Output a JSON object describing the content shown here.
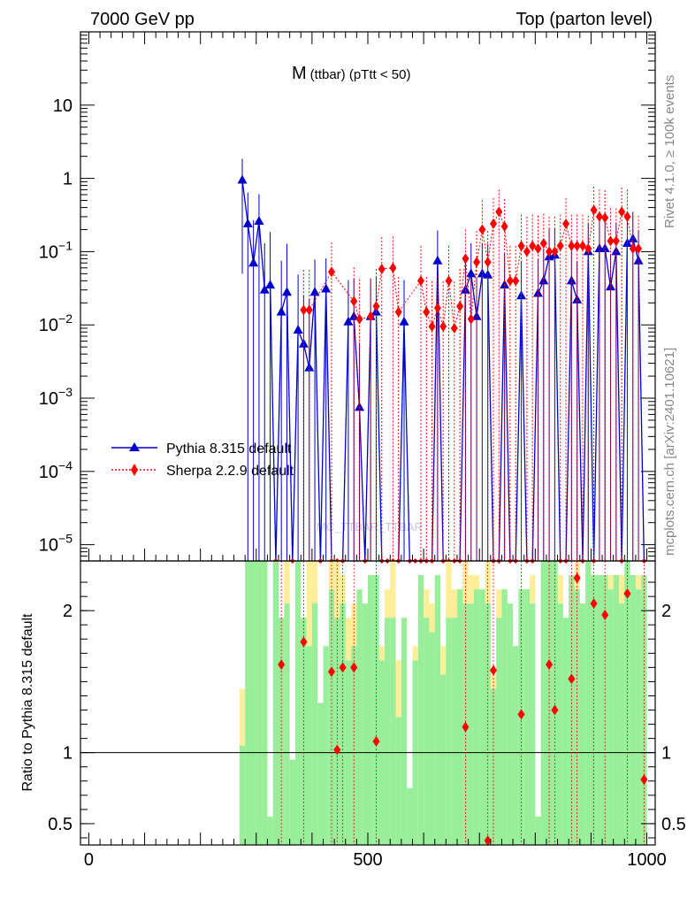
{
  "header": {
    "left": "7000 GeV pp",
    "right": "Top (parton level)"
  },
  "side_labels": {
    "rivet": "Rivet 4.1.0, ≥ 100k events",
    "mcplots": "mcplots.cern.ch [arXiv:2401.10621]"
  },
  "watermark": "MC_TTBAR_TTBAR",
  "colors": {
    "pythia": "#0000cc",
    "sherpa": "#ff0000",
    "band_green": "#99ee99",
    "band_yellow": "#ffee99"
  },
  "chart_data": [
    {
      "type": "line",
      "title": "M (ttbar) (pTtt < 50)",
      "title_main": "M",
      "title_sub": "(ttbar) (pTtt < 50)",
      "xlabel": "",
      "ylabel": "",
      "yscale": "log",
      "xlim": [
        -15,
        1015
      ],
      "ylim": [
        6e-06,
        100
      ],
      "x_ticks": [
        0,
        500,
        1000
      ],
      "y_ticks": [
        {
          "v": 10,
          "base": "10",
          "exp": ""
        },
        {
          "v": 1,
          "base": "1",
          "exp": ""
        },
        {
          "v": 0.1,
          "base": "10",
          "exp": "−1"
        },
        {
          "v": 0.01,
          "base": "10",
          "exp": "−2"
        },
        {
          "v": 0.001,
          "base": "10",
          "exp": "−3"
        },
        {
          "v": 0.0001,
          "base": "10",
          "exp": "−4"
        },
        {
          "v": 1e-05,
          "base": "10",
          "exp": "−5"
        }
      ],
      "legend": [
        "Pythia 8.315 default",
        "Sherpa 2.2.9 default"
      ],
      "legend_position": "center-left",
      "series": [
        {
          "name": "Pythia 8.315 default",
          "style": "solid-triangle",
          "x": [
            275,
            285,
            295,
            305,
            315,
            325,
            335,
            345,
            355,
            365,
            375,
            385,
            395,
            405,
            415,
            425,
            435,
            445,
            455,
            465,
            475,
            485,
            495,
            505,
            515,
            525,
            535,
            545,
            555,
            565,
            575,
            585,
            595,
            605,
            615,
            625,
            635,
            645,
            655,
            665,
            675,
            685,
            695,
            705,
            715,
            725,
            735,
            745,
            755,
            765,
            775,
            785,
            795,
            805,
            815,
            825,
            835,
            845,
            855,
            865,
            875,
            885,
            895,
            905,
            915,
            925,
            935,
            945,
            955,
            965,
            975,
            985,
            995
          ],
          "y": [
            0.95,
            0.24,
            0.07,
            0.26,
            0.03,
            0.035,
            0,
            0.015,
            0.028,
            0,
            0.0085,
            0.0055,
            0.0026,
            0.028,
            0,
            0.031,
            0,
            0,
            0,
            0.011,
            0.013,
            0.00075,
            0,
            0.013,
            0.015,
            0,
            0,
            0,
            0,
            0.011,
            0,
            0,
            0,
            0,
            0,
            0.075,
            0,
            0,
            0,
            0,
            0.03,
            0.05,
            0.013,
            0.05,
            0.048,
            0,
            0,
            0.035,
            0,
            0,
            0.025,
            0,
            0,
            0.027,
            0.04,
            0.085,
            0.09,
            0,
            0,
            0.04,
            0.022,
            0,
            0.1,
            0,
            0.11,
            0.11,
            0.033,
            0.1,
            0,
            0.13,
            0.15,
            0.075,
            0
          ],
          "yerr": [
            0.9,
            0.4,
            0.2,
            0.35,
            0.1,
            0.15,
            0,
            0.06,
            0.1,
            0,
            0.04,
            0.02,
            0.02,
            0.05,
            0,
            0.05,
            0,
            0,
            0,
            0.03,
            0.03,
            0.005,
            0,
            0.03,
            0.03,
            0,
            0,
            0,
            0,
            0.03,
            0,
            0,
            0,
            0,
            0,
            0.12,
            0,
            0,
            0,
            0,
            0.05,
            0.08,
            0.03,
            0.08,
            0.08,
            0,
            0,
            0.06,
            0,
            0,
            0.05,
            0,
            0,
            0.05,
            0.07,
            0.12,
            0.12,
            0,
            0,
            0.06,
            0.05,
            0,
            0.15,
            0,
            0.15,
            0.15,
            0.06,
            0.15,
            0,
            0.2,
            0.2,
            0.12,
            0
          ]
        },
        {
          "name": "Sherpa 2.2.9 default",
          "style": "dotted-diamond",
          "x": [
            385,
            395,
            435,
            475,
            485,
            505,
            515,
            525,
            545,
            555,
            595,
            605,
            615,
            625,
            635,
            645,
            655,
            665,
            675,
            685,
            695,
            705,
            715,
            725,
            735,
            745,
            755,
            765,
            775,
            785,
            795,
            805,
            815,
            825,
            835,
            845,
            855,
            865,
            875,
            885,
            895,
            905,
            915,
            925,
            935,
            945,
            955,
            965,
            975,
            985
          ],
          "y": [
            0.016,
            0.016,
            0.053,
            0.021,
            0.012,
            0.013,
            0.018,
            0.058,
            0.06,
            0.015,
            0.04,
            0.015,
            0.0095,
            0.017,
            0.0095,
            0.04,
            0.009,
            0.018,
            0.08,
            0.012,
            0.072,
            0.2,
            0.072,
            0.24,
            0.35,
            0.22,
            0.04,
            0.04,
            0.12,
            0.1,
            0.12,
            0.11,
            0.13,
            0.1,
            0.1,
            0.12,
            0.24,
            0.12,
            0.12,
            0.12,
            0.11,
            0.37,
            0.3,
            0.29,
            0.14,
            0.14,
            0.35,
            0.3,
            0.11,
            0.11
          ],
          "yerr": [
            0.04,
            0.04,
            0.08,
            0.04,
            0.03,
            0.03,
            0.04,
            0.1,
            0.1,
            0.03,
            0.08,
            0.03,
            0.03,
            0.03,
            0.03,
            0.08,
            0.03,
            0.04,
            0.12,
            0.03,
            0.12,
            0.3,
            0.12,
            0.3,
            0.35,
            0.3,
            0.08,
            0.08,
            0.2,
            0.2,
            0.2,
            0.2,
            0.2,
            0.2,
            0.2,
            0.2,
            0.3,
            0.2,
            0.2,
            0.2,
            0.2,
            0.4,
            0.4,
            0.4,
            0.25,
            0.25,
            0.4,
            0.4,
            0.2,
            0.2
          ]
        }
      ]
    },
    {
      "type": "line",
      "title": "",
      "ylabel": "Ratio to Pythia 8.315 default",
      "xlabel": "",
      "xlim": [
        -15,
        1015
      ],
      "ylim": [
        0.35,
        2.35
      ],
      "x_ticks": [
        0,
        500,
        1000
      ],
      "y_ticks": [
        0.5,
        1,
        2
      ],
      "reference_line": 1,
      "band_x": [
        275,
        285,
        295,
        305,
        315,
        325,
        335,
        345,
        355,
        365,
        375,
        385,
        395,
        405,
        415,
        425,
        435,
        445,
        455,
        465,
        475,
        485,
        495,
        505,
        515,
        525,
        535,
        545,
        555,
        565,
        575,
        585,
        595,
        605,
        615,
        625,
        635,
        645,
        655,
        665,
        675,
        685,
        695,
        705,
        715,
        725,
        735,
        745,
        755,
        765,
        775,
        785,
        795,
        805,
        815,
        825,
        835,
        845,
        855,
        865,
        875,
        885,
        895,
        905,
        915,
        925,
        935,
        945,
        955,
        965,
        975,
        985,
        995
      ],
      "band_green": [
        0.35,
        1,
        1,
        1,
        1,
        0.1,
        1,
        0.8,
        0.95,
        0.3,
        1,
        0.8,
        0.75,
        0.9,
        0.5,
        0.7,
        0.9,
        0.8,
        0.85,
        0.65,
        0.7,
        0.9,
        0.85,
        0.95,
        0.95,
        0.65,
        0.8,
        0.95,
        0.45,
        0.8,
        0.2,
        0.65,
        0.95,
        0.8,
        0.75,
        0.95,
        0.6,
        0.85,
        0.8,
        0.9,
        0.85,
        0.85,
        0.9,
        0.9,
        0.85,
        0.55,
        0.8,
        0.9,
        0.85,
        0.7,
        0.9,
        0.9,
        0.85,
        0.1,
        1,
        1,
        1,
        0.85,
        0.8,
        0.95,
        0.9,
        0.85,
        1,
        0.95,
        0.95,
        0.95,
        0.9,
        0.95,
        0.85,
        1,
        0.95,
        0.9,
        0.95
      ],
      "band_yellow": [
        0.2,
        0.2,
        0,
        0,
        0,
        0,
        0,
        0,
        0.15,
        0,
        0.2,
        0,
        0.3,
        0.15,
        0,
        0,
        0.1,
        0.2,
        0.1,
        0.15,
        0.15,
        0,
        0,
        0,
        0,
        0.05,
        0.1,
        0.2,
        0.2,
        0,
        0,
        0.05,
        0,
        0.1,
        0.1,
        0,
        0.1,
        0.2,
        0.1,
        0,
        0.15,
        0.1,
        0.05,
        0,
        0.15,
        0.05,
        0.1,
        0,
        0,
        0,
        0,
        0,
        0.1,
        0,
        0,
        0,
        0.1,
        0.1,
        0,
        0,
        0.1,
        0,
        0,
        0,
        0,
        0,
        0.05,
        0,
        0.1,
        0,
        0,
        0.05,
        0
      ],
      "series": [
        {
          "name": "Sherpa 2.2.9 default",
          "style": "dotted-diamond",
          "x": [
            345,
            385,
            435,
            445,
            455,
            475,
            515,
            675,
            715,
            725,
            775,
            825,
            835,
            865,
            875,
            905,
            925,
            965,
            995
          ],
          "y": [
            1.62,
            1.78,
            1.57,
            1.02,
            1.6,
            1.6,
            1.08,
            1.18,
            0.38,
            1.58,
            1.27,
            1.62,
            1.3,
            1.52,
            2.23,
            2.05,
            1.97,
            2.12,
            0.81
          ],
          "yerr": [
            0,
            0,
            0,
            0,
            0,
            0,
            0,
            0,
            0,
            0,
            0,
            0,
            0,
            0,
            0,
            0,
            0,
            0,
            0
          ]
        }
      ]
    }
  ]
}
